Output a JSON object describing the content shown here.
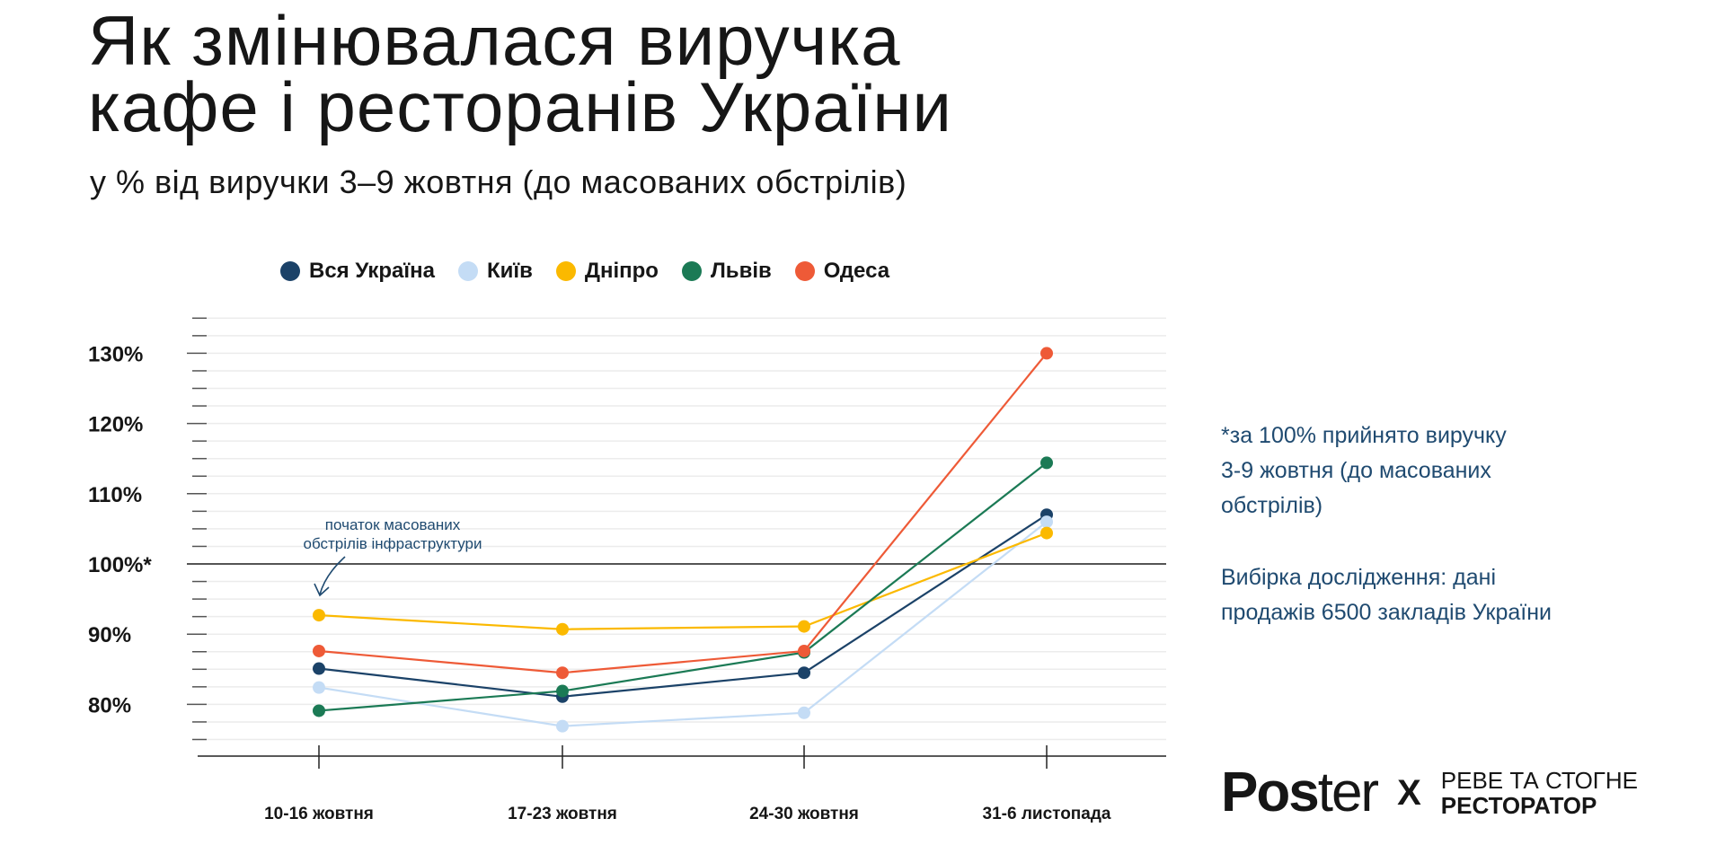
{
  "header": {
    "title_line1": "Як змінювалася виручка",
    "title_line2": "кафе і ресторанів України",
    "subtitle": "у % від виручки 3–9 жовтня (до масованих обстрілів)"
  },
  "notes": {
    "line1": "*за 100% прийнято виручку",
    "line2": "3-9 жовтня (до масованих",
    "line3": "обстрілів)",
    "line4": "Вибірка дослідження: дані",
    "line5": "продажів 6500 закладів України"
  },
  "logo": {
    "poster_bold": "Pos",
    "poster_light": "ter",
    "x": "X",
    "partner_line1": "РЕВЕ ТА СТОГНЕ",
    "partner_line2": "РЕСТОРАТОР"
  },
  "chart_data": {
    "type": "line",
    "title": "Як змінювалася виручка кафе і ресторанів України",
    "xlabel": "",
    "ylabel": "",
    "categories": [
      "10-16 жовтня",
      "17-23 жовтня",
      "24-30 жовтня",
      "31-6 листопада"
    ],
    "ylim": [
      75,
      135
    ],
    "yticks": [
      80,
      90,
      100,
      110,
      120,
      130
    ],
    "ytick_labels": [
      "80%",
      "90%",
      "100%*",
      "110%",
      "120%",
      "130%"
    ],
    "reference_line": 100,
    "grid": true,
    "legend_position": "top",
    "annotation": {
      "line1": "початок масованих",
      "line2": "обстрілів інфраструктури",
      "points_to": "10-16 жовтня"
    },
    "series": [
      {
        "name": "Вся Україна",
        "color": "#1b4268",
        "values": [
          85.1,
          81.1,
          84.5,
          107.0
        ]
      },
      {
        "name": "Київ",
        "color": "#c4dcf5",
        "values": [
          82.4,
          76.9,
          78.8,
          106.0
        ]
      },
      {
        "name": "Дніпро",
        "color": "#fbb900",
        "values": [
          92.7,
          90.7,
          91.1,
          104.4
        ]
      },
      {
        "name": "Львів",
        "color": "#1b7a55",
        "values": [
          79.1,
          81.9,
          87.4,
          114.4
        ]
      },
      {
        "name": "Одеса",
        "color": "#ee5a37",
        "values": [
          87.6,
          84.5,
          87.6,
          130.0
        ]
      }
    ]
  }
}
